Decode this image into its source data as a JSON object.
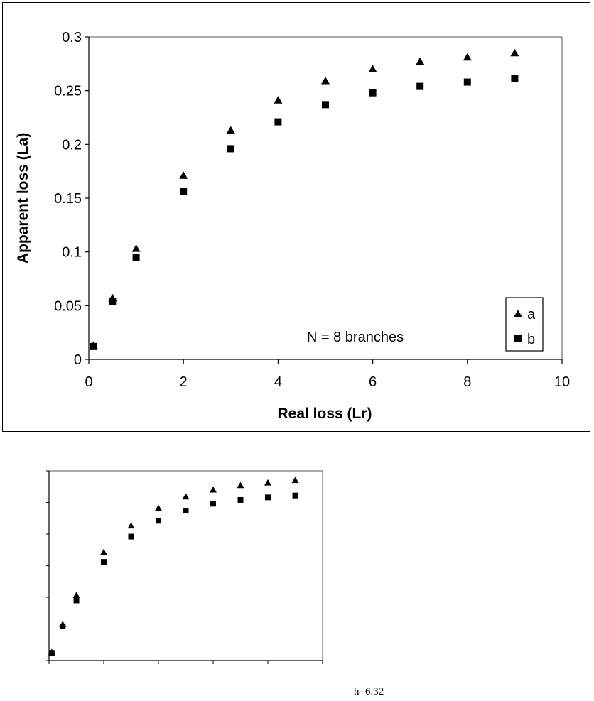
{
  "chart_data": [
    {
      "type": "scatter",
      "title": "",
      "xlabel": "Real loss (Lr)",
      "ylabel": "Apparent loss (La)",
      "xlim": [
        0,
        10
      ],
      "ylim": [
        0,
        0.3
      ],
      "xticks": [
        "0",
        "2",
        "4",
        "6",
        "8",
        "10"
      ],
      "yticks": [
        "0",
        "0.05",
        "0.1",
        "0.15",
        "0.2",
        "0.25",
        "0.3"
      ],
      "grid": false,
      "legend": "bottom-right",
      "annotation": "N = 8 branches",
      "series": [
        {
          "name": "a",
          "marker": "triangle",
          "x": [
            0.1,
            0.5,
            1,
            2,
            3,
            4,
            5,
            6,
            7,
            8,
            9
          ],
          "y": [
            0.013,
            0.057,
            0.103,
            0.171,
            0.213,
            0.241,
            0.259,
            0.27,
            0.277,
            0.281,
            0.285
          ]
        },
        {
          "name": "b",
          "marker": "square",
          "x": [
            0.1,
            0.5,
            1,
            2,
            3,
            4,
            5,
            6,
            7,
            8,
            9
          ],
          "y": [
            0.012,
            0.054,
            0.095,
            0.156,
            0.196,
            0.221,
            0.237,
            0.248,
            0.254,
            0.258,
            0.261
          ]
        }
      ]
    },
    {
      "type": "scatter",
      "title": "",
      "xlabel": "",
      "ylabel": "",
      "xlim": [
        0,
        10
      ],
      "ylim": [
        0,
        0.3
      ],
      "grid": false,
      "series": [
        {
          "marker": "triangle",
          "x": [
            0.1,
            0.5,
            1,
            2,
            3,
            4,
            5,
            6,
            7,
            8,
            9
          ],
          "y": [
            0.013,
            0.057,
            0.103,
            0.171,
            0.213,
            0.241,
            0.259,
            0.27,
            0.277,
            0.281,
            0.285
          ]
        },
        {
          "marker": "square",
          "x": [
            0.1,
            0.5,
            1,
            2,
            3,
            4,
            5,
            6,
            7,
            8,
            9
          ],
          "y": [
            0.012,
            0.054,
            0.095,
            0.156,
            0.196,
            0.221,
            0.237,
            0.248,
            0.254,
            0.258,
            0.261
          ]
        }
      ]
    }
  ],
  "footnote": "h=6.32"
}
